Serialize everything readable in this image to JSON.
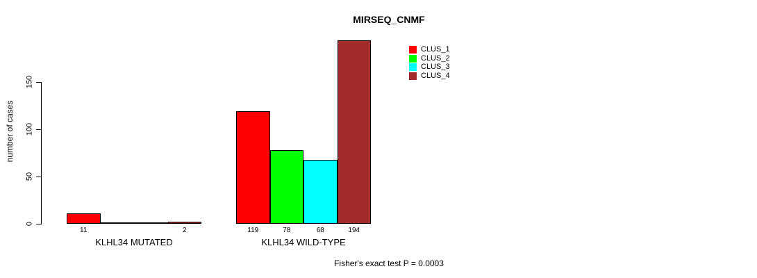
{
  "chart_data": {
    "type": "bar",
    "title": "MIRSEQ_CNMF",
    "ylabel": "number of cases",
    "xlabel": "",
    "annotation": "Fisher's exact test P = 0.0003",
    "categories": [
      "KLHL34 MUTATED",
      "KLHL34 WILD-TYPE"
    ],
    "series": [
      {
        "name": "CLUS_1",
        "color": "#ff0000",
        "values": [
          11,
          119
        ]
      },
      {
        "name": "CLUS_2",
        "color": "#00ff00",
        "values": [
          0,
          78
        ]
      },
      {
        "name": "CLUS_3",
        "color": "#00ffff",
        "values": [
          0,
          68
        ]
      },
      {
        "name": "CLUS_4",
        "color": "#a52a2a",
        "values": [
          2,
          194
        ]
      }
    ],
    "bar_value_labels": [
      [
        "11",
        null,
        null,
        "2"
      ],
      [
        "119",
        "78",
        "68",
        "194"
      ]
    ],
    "yticks": [
      0,
      50,
      100,
      150
    ],
    "ylim": [
      0,
      200
    ],
    "grid": false,
    "legend_position": "top-right",
    "background": "#ffffff",
    "text_color": "#000000"
  }
}
